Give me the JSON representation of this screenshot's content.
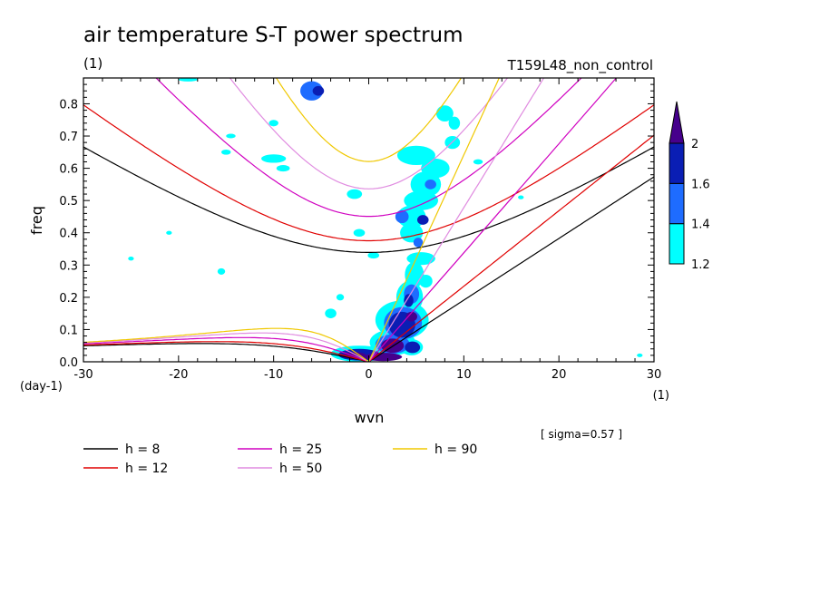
{
  "chart_data": {
    "type": "contour",
    "title": "air temperature S-T power spectrum",
    "subtitle_left": "(1)",
    "subtitle_right": "T159L48_non_control",
    "xlabel": "wvn",
    "ylabel": "freq",
    "x_unit_label": "(1)",
    "y_unit_label": "(day-1)",
    "xlim": [
      -30,
      30
    ],
    "ylim": [
      0,
      0.88
    ],
    "x_ticks": [
      -30,
      -20,
      -10,
      0,
      10,
      20,
      30
    ],
    "x_tick_labels": [
      "-30",
      "-20",
      "-10",
      "0",
      "10",
      "20",
      "30"
    ],
    "y_ticks": [
      0,
      0.1,
      0.2,
      0.3,
      0.4,
      0.5,
      0.6,
      0.7,
      0.8
    ],
    "y_tick_labels": [
      "0.0",
      "0.1",
      "0.2",
      "0.3",
      "0.4",
      "0.5",
      "0.6",
      "0.7",
      "0.8"
    ],
    "sigma_note": "[ sigma=0.57 ]",
    "colorbar": {
      "levels": [
        1.2,
        1.4,
        1.6,
        2
      ],
      "labels": [
        "1.2",
        "1.4",
        "1.6",
        "2"
      ],
      "colors": [
        "#00ffff",
        "#1e6cff",
        "#0a1eb4",
        "#46008c"
      ]
    },
    "series": [
      {
        "name": "h =  8",
        "h": 8,
        "color": "#000000"
      },
      {
        "name": "h = 12",
        "h": 12,
        "color": "#e00000"
      },
      {
        "name": "h = 25",
        "h": 25,
        "color": "#d000c0"
      },
      {
        "name": "h = 50",
        "h": 50,
        "color": "#e08ce0"
      },
      {
        "name": "h = 90",
        "h": 90,
        "color": "#f0c800"
      }
    ],
    "contour_patches": [
      {
        "x": -6.0,
        "y": 0.84,
        "rx": 1.2,
        "ry": 0.03,
        "level": 1
      },
      {
        "x": -5.3,
        "y": 0.84,
        "rx": 0.6,
        "ry": 0.015,
        "level": 2
      },
      {
        "x": -19.0,
        "y": 0.875,
        "rx": 1.0,
        "ry": 0.006,
        "level": 0
      },
      {
        "x": 8.0,
        "y": 0.77,
        "rx": 0.9,
        "ry": 0.025,
        "level": 0
      },
      {
        "x": 9.0,
        "y": 0.74,
        "rx": 0.6,
        "ry": 0.02,
        "level": 0
      },
      {
        "x": 8.8,
        "y": 0.68,
        "rx": 0.8,
        "ry": 0.02,
        "level": 0
      },
      {
        "x": 5.0,
        "y": 0.64,
        "rx": 2.0,
        "ry": 0.03,
        "level": 0
      },
      {
        "x": 7.0,
        "y": 0.6,
        "rx": 1.5,
        "ry": 0.03,
        "level": 0
      },
      {
        "x": 6.0,
        "y": 0.55,
        "rx": 1.6,
        "ry": 0.04,
        "level": 0
      },
      {
        "x": 6.5,
        "y": 0.55,
        "rx": 0.6,
        "ry": 0.015,
        "level": 1
      },
      {
        "x": 5.5,
        "y": 0.5,
        "rx": 1.8,
        "ry": 0.03,
        "level": 0
      },
      {
        "x": 4.5,
        "y": 0.45,
        "rx": 1.5,
        "ry": 0.035,
        "level": 0
      },
      {
        "x": 3.5,
        "y": 0.45,
        "rx": 0.7,
        "ry": 0.02,
        "level": 1
      },
      {
        "x": 5.7,
        "y": 0.44,
        "rx": 0.6,
        "ry": 0.015,
        "level": 2
      },
      {
        "x": 4.5,
        "y": 0.4,
        "rx": 1.2,
        "ry": 0.03,
        "level": 0
      },
      {
        "x": 5.2,
        "y": 0.37,
        "rx": 0.5,
        "ry": 0.015,
        "level": 1
      },
      {
        "x": 5.5,
        "y": 0.32,
        "rx": 1.5,
        "ry": 0.02,
        "level": 0
      },
      {
        "x": 4.8,
        "y": 0.27,
        "rx": 1.0,
        "ry": 0.04,
        "level": 0
      },
      {
        "x": 6.0,
        "y": 0.25,
        "rx": 0.7,
        "ry": 0.02,
        "level": 0
      },
      {
        "x": 4.3,
        "y": 0.2,
        "rx": 1.4,
        "ry": 0.05,
        "level": 0
      },
      {
        "x": 4.5,
        "y": 0.21,
        "rx": 0.8,
        "ry": 0.03,
        "level": 1
      },
      {
        "x": 4.2,
        "y": 0.19,
        "rx": 0.5,
        "ry": 0.02,
        "level": 2
      },
      {
        "x": 3.5,
        "y": 0.13,
        "rx": 2.8,
        "ry": 0.06,
        "level": 0
      },
      {
        "x": 3.6,
        "y": 0.12,
        "rx": 2.0,
        "ry": 0.05,
        "level": 1
      },
      {
        "x": 3.5,
        "y": 0.115,
        "rx": 1.4,
        "ry": 0.04,
        "level": 2
      },
      {
        "x": 4.5,
        "y": 0.14,
        "rx": 0.6,
        "ry": 0.015,
        "level": 3
      },
      {
        "x": 2.5,
        "y": 0.06,
        "rx": 2.4,
        "ry": 0.04,
        "level": 0
      },
      {
        "x": 2.5,
        "y": 0.055,
        "rx": 1.8,
        "ry": 0.03,
        "level": 1
      },
      {
        "x": 2.5,
        "y": 0.05,
        "rx": 1.2,
        "ry": 0.022,
        "level": 3
      },
      {
        "x": 4.5,
        "y": 0.045,
        "rx": 1.2,
        "ry": 0.025,
        "level": 0
      },
      {
        "x": 4.6,
        "y": 0.045,
        "rx": 0.8,
        "ry": 0.018,
        "level": 2
      },
      {
        "x": -1.0,
        "y": 0.025,
        "rx": 3.0,
        "ry": 0.025,
        "level": 0
      },
      {
        "x": -1.0,
        "y": 0.022,
        "rx": 2.2,
        "ry": 0.018,
        "level": 2
      },
      {
        "x": -1.5,
        "y": 0.02,
        "rx": 1.2,
        "ry": 0.01,
        "level": 3
      },
      {
        "x": 1.5,
        "y": 0.015,
        "rx": 2.0,
        "ry": 0.013,
        "level": 3
      },
      {
        "x": -4.0,
        "y": 0.15,
        "rx": 0.6,
        "ry": 0.015,
        "level": 0
      },
      {
        "x": -3.0,
        "y": 0.2,
        "rx": 0.4,
        "ry": 0.01,
        "level": 0
      },
      {
        "x": -10.0,
        "y": 0.63,
        "rx": 1.3,
        "ry": 0.013,
        "level": 0
      },
      {
        "x": -9.0,
        "y": 0.6,
        "rx": 0.7,
        "ry": 0.01,
        "level": 0
      },
      {
        "x": -15.0,
        "y": 0.65,
        "rx": 0.5,
        "ry": 0.008,
        "level": 0
      },
      {
        "x": -14.5,
        "y": 0.7,
        "rx": 0.5,
        "ry": 0.007,
        "level": 0
      },
      {
        "x": -1.5,
        "y": 0.52,
        "rx": 0.8,
        "ry": 0.015,
        "level": 0
      },
      {
        "x": -1.0,
        "y": 0.4,
        "rx": 0.6,
        "ry": 0.012,
        "level": 0
      },
      {
        "x": 0.5,
        "y": 0.33,
        "rx": 0.6,
        "ry": 0.01,
        "level": 0
      },
      {
        "x": -15.5,
        "y": 0.28,
        "rx": 0.4,
        "ry": 0.01,
        "level": 0
      },
      {
        "x": -10.0,
        "y": 0.74,
        "rx": 0.5,
        "ry": 0.01,
        "level": 0
      },
      {
        "x": 11.5,
        "y": 0.62,
        "rx": 0.5,
        "ry": 0.008,
        "level": 0
      },
      {
        "x": -21.0,
        "y": 0.4,
        "rx": 0.3,
        "ry": 0.006,
        "level": 0
      },
      {
        "x": -25.0,
        "y": 0.32,
        "rx": 0.3,
        "ry": 0.006,
        "level": 0
      },
      {
        "x": 16.0,
        "y": 0.51,
        "rx": 0.3,
        "ry": 0.006,
        "level": 0
      },
      {
        "x": 28.5,
        "y": 0.02,
        "rx": 0.3,
        "ry": 0.004,
        "level": 0
      }
    ]
  }
}
